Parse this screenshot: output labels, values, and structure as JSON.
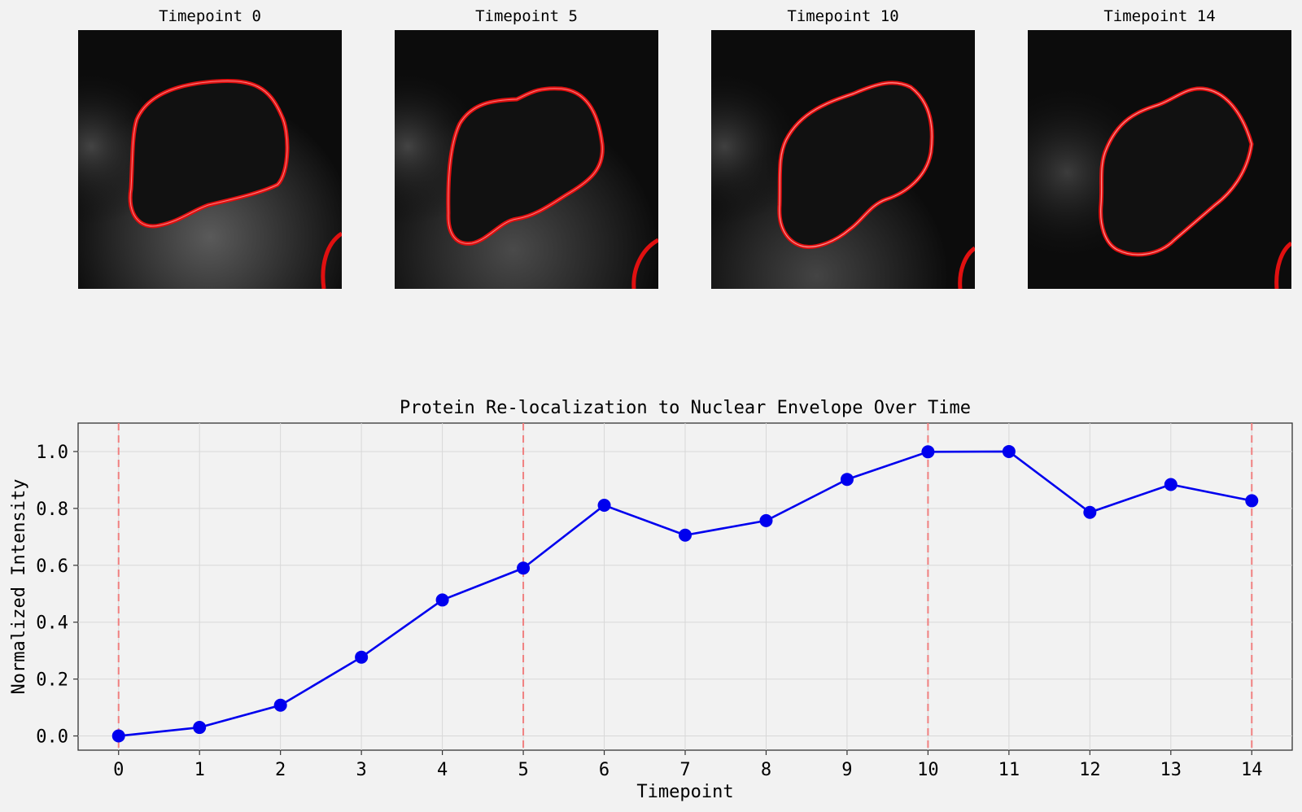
{
  "panels": [
    {
      "title": "Timepoint 0"
    },
    {
      "title": "Timepoint 5"
    },
    {
      "title": "Timepoint 10"
    },
    {
      "title": "Timepoint 14"
    }
  ],
  "colors": {
    "background": "#f2f2f2",
    "line": "#0000ee",
    "marker": "#0000ee",
    "marker_vline": "#f08080",
    "contour": "#e01010",
    "cell_image": "#0c0c0c"
  },
  "chart_data": {
    "type": "line",
    "title": "Protein Re-localization to Nuclear Envelope Over Time",
    "xlabel": "Timepoint",
    "ylabel": "Normalized Intensity",
    "x": [
      0,
      1,
      2,
      3,
      4,
      5,
      6,
      7,
      8,
      9,
      10,
      11,
      12,
      13,
      14
    ],
    "series": [
      {
        "values": [
          0.0,
          0.03,
          0.108,
          0.277,
          0.478,
          0.59,
          0.811,
          0.706,
          0.757,
          0.902,
          0.999,
          1.0,
          0.786,
          0.884,
          0.827
        ]
      }
    ],
    "highlighted_timepoints": [
      0,
      5,
      10,
      14
    ],
    "xticks": [
      "0",
      "1",
      "2",
      "3",
      "4",
      "5",
      "6",
      "7",
      "8",
      "9",
      "10",
      "11",
      "12",
      "13",
      "14"
    ],
    "yticks": [
      "0.0",
      "0.2",
      "0.4",
      "0.6",
      "0.8",
      "1.0"
    ],
    "xlim": [
      -0.5,
      14.5
    ],
    "ylim": [
      -0.05,
      1.1
    ],
    "grid": true
  }
}
